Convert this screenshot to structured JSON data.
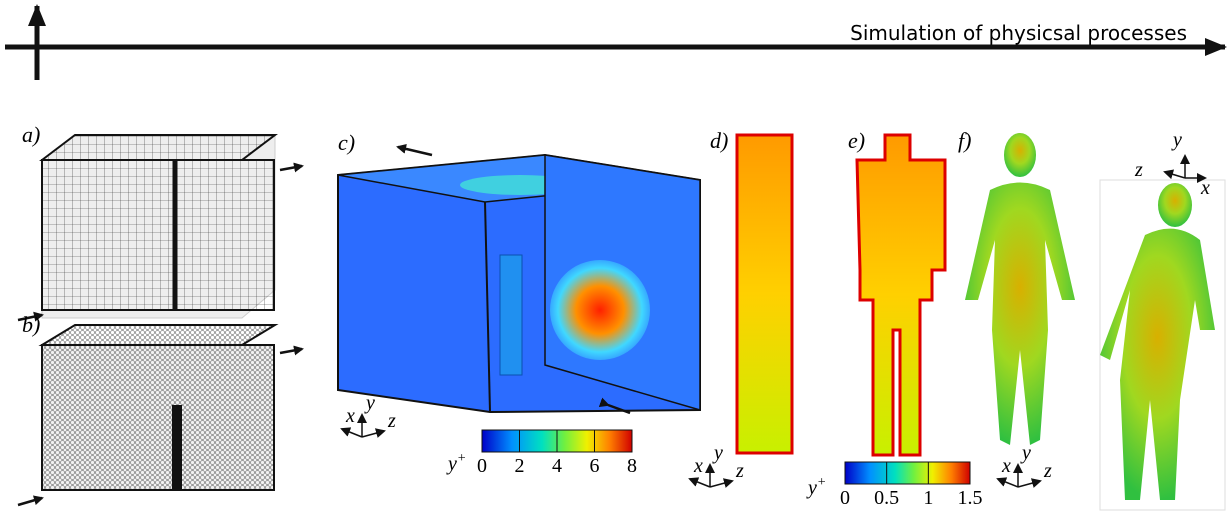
{
  "header": {
    "title": "Simulation of physicsal processes"
  },
  "panels": [
    {
      "label": "a)"
    },
    {
      "label": "b)"
    },
    {
      "label": "c)"
    },
    {
      "label": "d)"
    },
    {
      "label": "e)"
    },
    {
      "label": "f)"
    }
  ],
  "triads": [
    {
      "x": "x",
      "y": "y",
      "z": "z"
    },
    {
      "x": "x",
      "y": "y",
      "z": "z"
    },
    {
      "x": "x",
      "y": "y",
      "z": "z"
    },
    {
      "x": "x",
      "y": "y",
      "z": "z"
    }
  ],
  "colorbars": [
    {
      "label": "y",
      "superscript": "+",
      "range": [
        0,
        8
      ],
      "ticks": [
        0,
        2,
        4,
        6,
        8
      ]
    },
    {
      "label": "y",
      "superscript": "+",
      "range": [
        0,
        1.5
      ],
      "ticks": [
        0,
        0.5,
        1,
        1.5
      ]
    }
  ]
}
